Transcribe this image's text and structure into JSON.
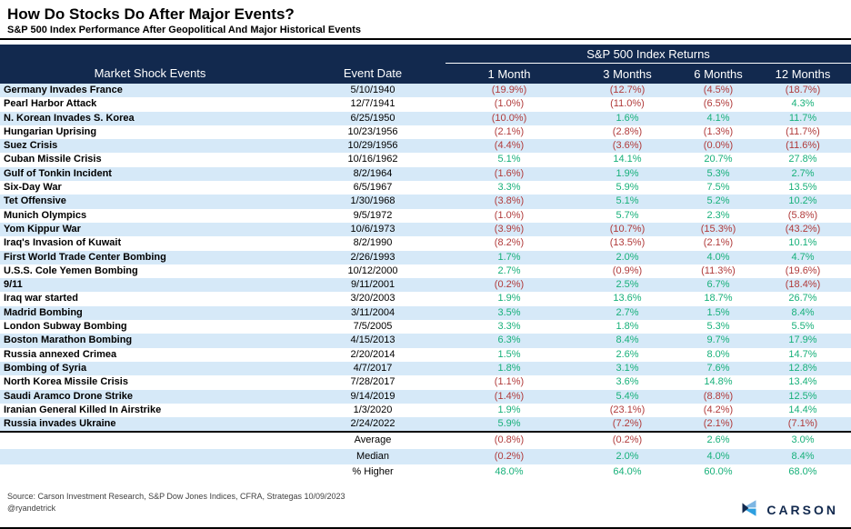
{
  "title": "How Do Stocks Do After Major Events?",
  "subtitle": "S&P 500 Index Performance After Geopolitical And Major Historical Events",
  "chart_data": {
    "type": "table",
    "group_header": "S&P 500 Index Returns",
    "columns": {
      "event": "Market Shock Events",
      "date": "Event Date",
      "returns": [
        "1 Month",
        "3 Months",
        "6 Months",
        "12 Months"
      ]
    },
    "rows": [
      {
        "event": "Germany Invades France",
        "date": "5/10/1940",
        "returns": [
          "(19.9%)",
          "(12.7%)",
          "(4.5%)",
          "(18.7%)"
        ]
      },
      {
        "event": "Pearl Harbor Attack",
        "date": "12/7/1941",
        "returns": [
          "(1.0%)",
          "(11.0%)",
          "(6.5%)",
          "4.3%"
        ]
      },
      {
        "event": "N. Korean Invades S. Korea",
        "date": "6/25/1950",
        "returns": [
          "(10.0%)",
          "1.6%",
          "4.1%",
          "11.7%"
        ]
      },
      {
        "event": "Hungarian Uprising",
        "date": "10/23/1956",
        "returns": [
          "(2.1%)",
          "(2.8%)",
          "(1.3%)",
          "(11.7%)"
        ]
      },
      {
        "event": "Suez Crisis",
        "date": "10/29/1956",
        "returns": [
          "(4.4%)",
          "(3.6%)",
          "(0.0%)",
          "(11.6%)"
        ]
      },
      {
        "event": "Cuban Missile Crisis",
        "date": "10/16/1962",
        "returns": [
          "5.1%",
          "14.1%",
          "20.7%",
          "27.8%"
        ]
      },
      {
        "event": "Gulf of Tonkin Incident",
        "date": "8/2/1964",
        "returns": [
          "(1.6%)",
          "1.9%",
          "5.3%",
          "2.7%"
        ]
      },
      {
        "event": "Six-Day War",
        "date": "6/5/1967",
        "returns": [
          "3.3%",
          "5.9%",
          "7.5%",
          "13.5%"
        ]
      },
      {
        "event": "Tet Offensive",
        "date": "1/30/1968",
        "returns": [
          "(3.8%)",
          "5.1%",
          "5.2%",
          "10.2%"
        ]
      },
      {
        "event": "Munich Olympics",
        "date": "9/5/1972",
        "returns": [
          "(1.0%)",
          "5.7%",
          "2.3%",
          "(5.8%)"
        ]
      },
      {
        "event": "Yom Kippur War",
        "date": "10/6/1973",
        "returns": [
          "(3.9%)",
          "(10.7%)",
          "(15.3%)",
          "(43.2%)"
        ]
      },
      {
        "event": "Iraq's Invasion of Kuwait",
        "date": "8/2/1990",
        "returns": [
          "(8.2%)",
          "(13.5%)",
          "(2.1%)",
          "10.1%"
        ]
      },
      {
        "event": "First World Trade Center Bombing",
        "date": "2/26/1993",
        "returns": [
          "1.7%",
          "2.0%",
          "4.0%",
          "4.7%"
        ]
      },
      {
        "event": "U.S.S. Cole Yemen Bombing",
        "date": "10/12/2000",
        "returns": [
          "2.7%",
          "(0.9%)",
          "(11.3%)",
          "(19.6%)"
        ]
      },
      {
        "event": "9/11",
        "date": "9/11/2001",
        "returns": [
          "(0.2%)",
          "2.5%",
          "6.7%",
          "(18.4%)"
        ]
      },
      {
        "event": "Iraq war started",
        "date": "3/20/2003",
        "returns": [
          "1.9%",
          "13.6%",
          "18.7%",
          "26.7%"
        ]
      },
      {
        "event": "Madrid Bombing",
        "date": "3/11/2004",
        "returns": [
          "3.5%",
          "2.7%",
          "1.5%",
          "8.4%"
        ]
      },
      {
        "event": "London Subway Bombing",
        "date": "7/5/2005",
        "returns": [
          "3.3%",
          "1.8%",
          "5.3%",
          "5.5%"
        ]
      },
      {
        "event": "Boston Marathon Bombing",
        "date": "4/15/2013",
        "returns": [
          "6.3%",
          "8.4%",
          "9.7%",
          "17.9%"
        ]
      },
      {
        "event": "Russia annexed Crimea",
        "date": "2/20/2014",
        "returns": [
          "1.5%",
          "2.6%",
          "8.0%",
          "14.7%"
        ]
      },
      {
        "event": "Bombing of Syria",
        "date": "4/7/2017",
        "returns": [
          "1.8%",
          "3.1%",
          "7.6%",
          "12.8%"
        ]
      },
      {
        "event": "North Korea Missile Crisis",
        "date": "7/28/2017",
        "returns": [
          "(1.1%)",
          "3.6%",
          "14.8%",
          "13.4%"
        ]
      },
      {
        "event": "Saudi Aramco Drone Strike",
        "date": "9/14/2019",
        "returns": [
          "(1.4%)",
          "5.4%",
          "(8.8%)",
          "12.5%"
        ]
      },
      {
        "event": "Iranian General Killed In Airstrike",
        "date": "1/3/2020",
        "returns": [
          "1.9%",
          "(23.1%)",
          "(4.2%)",
          "14.4%"
        ]
      },
      {
        "event": "Russia invades Ukraine",
        "date": "2/24/2022",
        "returns": [
          "5.9%",
          "(7.2%)",
          "(2.1%)",
          "(7.1%)"
        ]
      }
    ],
    "summary": [
      {
        "label": "Average",
        "returns": [
          "(0.8%)",
          "(0.2%)",
          "2.6%",
          "3.0%"
        ]
      },
      {
        "label": "Median",
        "returns": [
          "(0.2%)",
          "2.0%",
          "4.0%",
          "8.4%"
        ]
      },
      {
        "label": "% Higher",
        "returns": [
          "48.0%",
          "64.0%",
          "60.0%",
          "68.0%"
        ]
      }
    ],
    "layout_hints": {
      "negative_format": "parentheses-red",
      "positive_format": "green",
      "row_striping": "alternating-light-blue"
    }
  },
  "footer": {
    "source": "Source: Carson Investment Research, S&P Dow Jones Indices, CFRA, Strategas 10/09/2023",
    "handle": "@ryandetrick",
    "logo_text": "CARSON"
  },
  "colors": {
    "header_bg": "#12294E",
    "stripe": "#D6E9F8",
    "positive": "#17B07A",
    "negative": "#B03A3A",
    "logo_navy": "#12294E",
    "logo_light": "#7DB6E3",
    "logo_blue": "#2D9FE0"
  }
}
